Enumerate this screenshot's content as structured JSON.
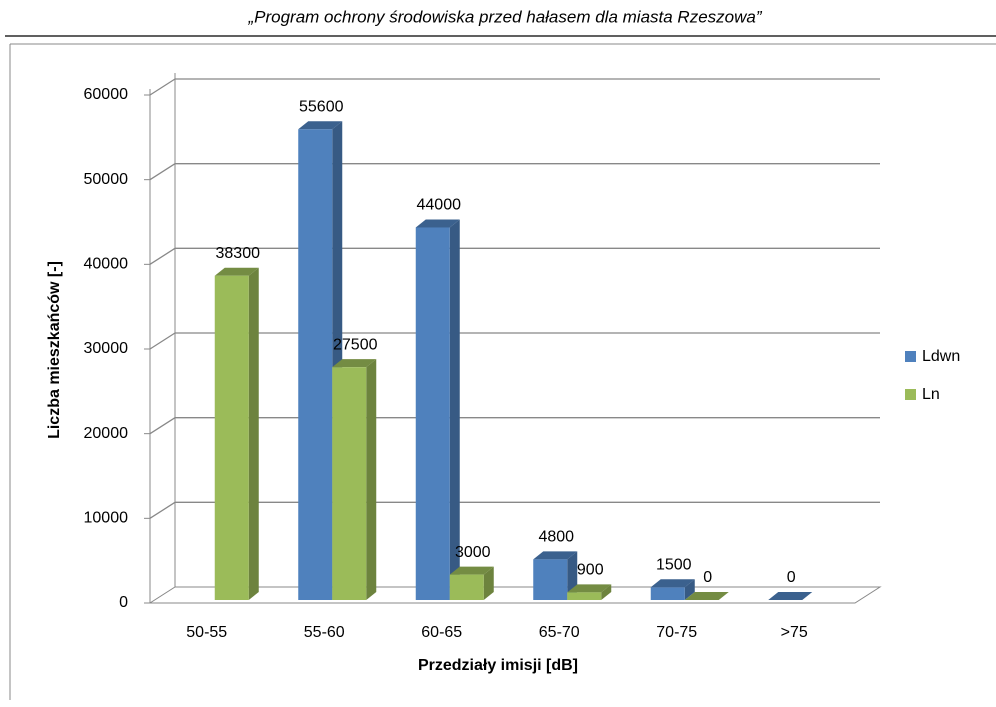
{
  "header": {
    "title": "„Program ochrony środowiska przed hałasem dla miasta Rzeszowa”"
  },
  "chart_data": {
    "type": "bar3d",
    "categories": [
      "50-55",
      "55-60",
      "60-65",
      "65-70",
      "70-75",
      ">75"
    ],
    "series": [
      {
        "name": "Ldwn",
        "color": "#4f81bd",
        "values": [
          null,
          55600,
          44000,
          4800,
          1500,
          0
        ]
      },
      {
        "name": "Ln",
        "color": "#9bbb59",
        "values": [
          38300,
          27500,
          3000,
          900,
          0,
          null
        ]
      }
    ],
    "ylim": [
      0,
      60000
    ],
    "yticks": [
      0,
      10000,
      20000,
      30000,
      40000,
      50000,
      60000
    ],
    "ylabel": "Liczba mieszkańców [-]",
    "xlabel": "Przedziały imisji [dB]",
    "grid": true,
    "legend": "right"
  }
}
